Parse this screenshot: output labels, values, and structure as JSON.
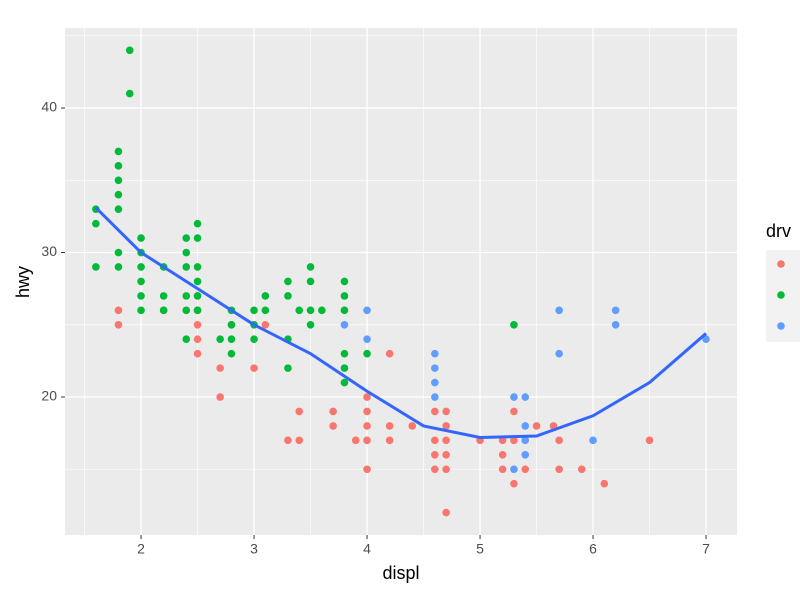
{
  "chart_data": {
    "type": "scatter",
    "x_label": "displ",
    "y_label": "hwy",
    "legend_title": "drv",
    "xlim": [
      1.327,
      7.274
    ],
    "ylim": [
      10.45,
      45.54
    ],
    "xticks": [
      2,
      3,
      4,
      5,
      6,
      7
    ],
    "yticks": [
      20,
      30,
      40
    ],
    "xminor_ticks": [
      1.5,
      2.5,
      3.5,
      4.5,
      5.5,
      6.5
    ],
    "yminor_ticks": [
      15,
      25,
      35,
      45
    ],
    "grid": true,
    "legend_position": "right",
    "series": [
      {
        "color": "#F8766D",
        "x": [
          1.8,
          1.8,
          2.2,
          2.5,
          2.5,
          2.5,
          2.5,
          2.5,
          2.7,
          2.7,
          2.8,
          3.0,
          3.1,
          3.3,
          3.4,
          3.4,
          3.7,
          3.7,
          3.9,
          4.0,
          4.0,
          4.0,
          4.0,
          4.0,
          4.2,
          4.2,
          4.2,
          4.4,
          4.6,
          4.6,
          4.6,
          4.6,
          4.7,
          4.7,
          4.7,
          4.7,
          4.7,
          4.7,
          5.0,
          5.2,
          5.2,
          5.2,
          5.3,
          5.3,
          5.3,
          5.4,
          5.5,
          5.65,
          5.7,
          5.7,
          5.9,
          6.1,
          6.5
        ],
        "y": [
          26,
          25,
          26,
          27,
          26,
          25,
          24,
          23,
          22,
          20,
          25,
          22,
          25,
          17,
          19,
          17,
          19,
          18,
          17,
          20,
          19,
          18,
          17,
          15,
          23,
          18,
          17,
          18,
          19,
          17,
          16,
          15,
          19,
          18,
          17,
          16,
          15,
          12,
          17,
          17,
          16,
          15,
          19,
          17,
          14,
          15,
          18,
          18,
          17,
          15,
          15,
          14,
          17
        ]
      },
      {
        "color": "#00BA38",
        "x": [
          1.6,
          1.6,
          1.6,
          1.8,
          1.8,
          1.8,
          1.8,
          1.8,
          1.8,
          1.8,
          1.9,
          1.9,
          2.0,
          2.0,
          2.0,
          2.0,
          2.0,
          2.0,
          2.2,
          2.2,
          2.2,
          2.4,
          2.4,
          2.4,
          2.4,
          2.4,
          2.4,
          2.5,
          2.5,
          2.5,
          2.5,
          2.5,
          2.5,
          2.7,
          2.8,
          2.8,
          2.8,
          2.8,
          3.0,
          3.0,
          3.0,
          3.1,
          3.1,
          3.3,
          3.3,
          3.3,
          3.3,
          3.4,
          3.5,
          3.5,
          3.5,
          3.5,
          3.6,
          3.8,
          3.8,
          3.8,
          3.8,
          3.8,
          3.8,
          4.0,
          5.3
        ],
        "y": [
          33,
          32,
          29,
          37,
          36,
          35,
          34,
          33,
          30,
          29,
          44,
          41,
          31,
          30,
          29,
          28,
          27,
          26,
          29,
          27,
          26,
          31,
          30,
          29,
          27,
          26,
          24,
          32,
          31,
          29,
          28,
          27,
          26,
          24,
          26,
          25,
          24,
          23,
          26,
          25,
          24,
          27,
          26,
          28,
          27,
          24,
          22,
          26,
          29,
          28,
          26,
          25,
          26,
          28,
          27,
          26,
          23,
          22,
          21,
          23,
          25
        ]
      },
      {
        "color": "#619CFF",
        "x": [
          3.8,
          4.0,
          4.0,
          4.6,
          4.6,
          4.6,
          4.6,
          5.3,
          5.3,
          5.4,
          5.4,
          5.4,
          5.4,
          5.7,
          5.7,
          6.0,
          6.2,
          6.2,
          7.0
        ],
        "y": [
          25,
          26,
          24,
          23,
          22,
          21,
          20,
          20,
          15,
          20,
          18,
          17,
          16,
          26,
          23,
          17,
          26,
          25,
          24
        ]
      }
    ],
    "smooth": {
      "color": "#3366FF",
      "x": [
        1.6,
        2.0,
        2.5,
        3.0,
        3.5,
        4.0,
        4.5,
        5.0,
        5.5,
        6.0,
        6.5,
        7.0
      ],
      "y": [
        33.1,
        30.0,
        27.5,
        25.0,
        23.0,
        20.4,
        18.0,
        17.2,
        17.3,
        18.7,
        21.0,
        24.4
      ]
    }
  }
}
